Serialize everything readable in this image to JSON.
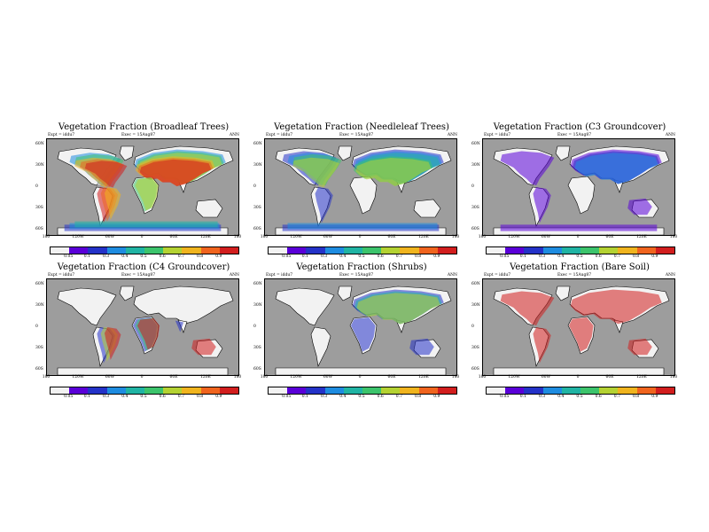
{
  "palette": [
    "#f2f2f2",
    "#5a00d8",
    "#2432c8",
    "#1e8ce0",
    "#20b4a4",
    "#3cc46c",
    "#b4d232",
    "#f0b41e",
    "#f0641e",
    "#d21e1e"
  ],
  "colorbar_ticks": [
    "0.05",
    "0.1",
    "0.3",
    "0.4",
    "0.5",
    "0.6",
    "0.7",
    "0.8",
    "0.9"
  ],
  "lat_labels": [
    "60N",
    "30N",
    "0",
    "30S",
    "60S"
  ],
  "lon_labels": [
    "180",
    "120W",
    "60W",
    "0",
    "60E",
    "120E",
    "180"
  ],
  "panels": [
    {
      "title": "Vegetation Fraction (Broadleaf Trees)",
      "left_info": "Expt = iddu7",
      "center_info": "Exec =  15Aug87",
      "right_info": "ANN",
      "highlight": "broadleaf-forests"
    },
    {
      "title": "Vegetation Fraction (Needleleaf Trees)",
      "left_info": "Expt = iddu7",
      "center_info": "Exec =  15Aug87",
      "right_info": "ANN",
      "highlight": "boreal-forests"
    },
    {
      "title": "Vegetation Fraction (C3 Groundcover)",
      "left_info": "Expt = iddu7",
      "center_info": "Exec =  15Aug87",
      "right_info": "ANN",
      "highlight": "temperate-grasslands"
    },
    {
      "title": "Vegetation Fraction (C4 Groundcover)",
      "left_info": "Expt = iddu7",
      "center_info": "Exec =  15Aug87",
      "right_info": "ANN",
      "highlight": "tropical-grasslands"
    },
    {
      "title": "Vegetation Fraction (Shrubs)",
      "left_info": "Expt = iddu7",
      "center_info": "Exec =  15Aug87",
      "right_info": "ANN",
      "highlight": "shrublands"
    },
    {
      "title": "Vegetation Fraction (Bare Soil)",
      "left_info": "Expt = iddu7",
      "center_info": "Exec =  15Aug87",
      "right_info": "ANN",
      "highlight": "deserts"
    }
  ]
}
